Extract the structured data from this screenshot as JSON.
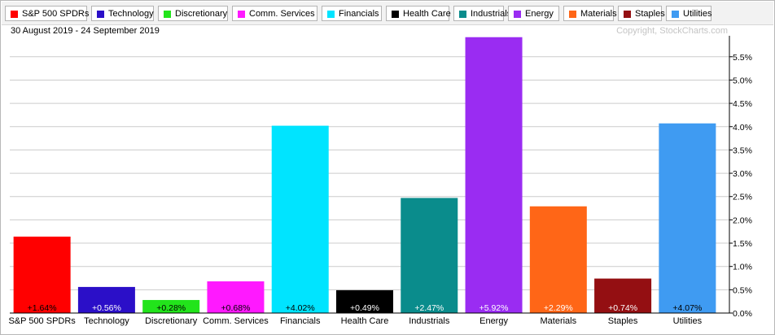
{
  "legend": [
    {
      "label": "S&P 500 SPDRs",
      "color": "#ff0000"
    },
    {
      "label": "Technology",
      "color": "#2b0fc8"
    },
    {
      "label": "Discretionary",
      "color": "#22e41b"
    },
    {
      "label": "Comm. Services",
      "color": "#ff19ff"
    },
    {
      "label": "Financials",
      "color": "#00e4ff"
    },
    {
      "label": "Health Care",
      "color": "#000000"
    },
    {
      "label": "Industrials",
      "color": "#0a8c8c"
    },
    {
      "label": "Energy",
      "color": "#9a2cf2"
    },
    {
      "label": "Materials",
      "color": "#ff6617"
    },
    {
      "label": "Staples",
      "color": "#940f12"
    },
    {
      "label": "Utilities",
      "color": "#3f9bf2"
    }
  ],
  "header": {
    "date_range": "30 August 2019 - 24 September 2019",
    "copyright": "Copyright, StockCharts.com"
  },
  "chart_data": {
    "type": "bar",
    "title": "",
    "xlabel": "",
    "ylabel": "",
    "categories": [
      "S&P 500 SPDRs",
      "Technology",
      "Discretionary",
      "Comm. Services",
      "Financials",
      "Health Care",
      "Industrials",
      "Energy",
      "Materials",
      "Staples",
      "Utilities"
    ],
    "values": [
      1.64,
      0.56,
      0.28,
      0.68,
      4.02,
      0.49,
      2.47,
      5.92,
      2.29,
      0.74,
      4.07
    ],
    "value_labels": [
      "+1.64%",
      "+0.56%",
      "+0.28%",
      "+0.68%",
      "+4.02%",
      "+0.49%",
      "+2.47%",
      "+5.92%",
      "+2.29%",
      "+0.74%",
      "+4.07%"
    ],
    "colors": [
      "#ff0000",
      "#2b0fc8",
      "#22e41b",
      "#ff19ff",
      "#00e4ff",
      "#000000",
      "#0a8c8c",
      "#9a2cf2",
      "#ff6617",
      "#940f12",
      "#3f9bf2"
    ],
    "label_colors": [
      "#000000",
      "#ffffff",
      "#000000",
      "#000000",
      "#000000",
      "#ffffff",
      "#ffffff",
      "#ffffff",
      "#ffffff",
      "#ffffff",
      "#000000"
    ],
    "yticks": [
      0,
      0.5,
      1,
      1.5,
      2,
      2.5,
      3,
      3.5,
      4,
      4.5,
      5,
      5.5
    ],
    "ytick_labels": [
      "0.0%",
      "0.5%",
      "1.0%",
      "1.5%",
      "2.0%",
      "2.5%",
      "3.0%",
      "3.5%",
      "4.0%",
      "4.5%",
      "5.0%",
      "5.5%"
    ],
    "ylim": [
      0,
      5.95
    ],
    "y_axis_side": "right",
    "grid": true,
    "legend_position": "top"
  }
}
